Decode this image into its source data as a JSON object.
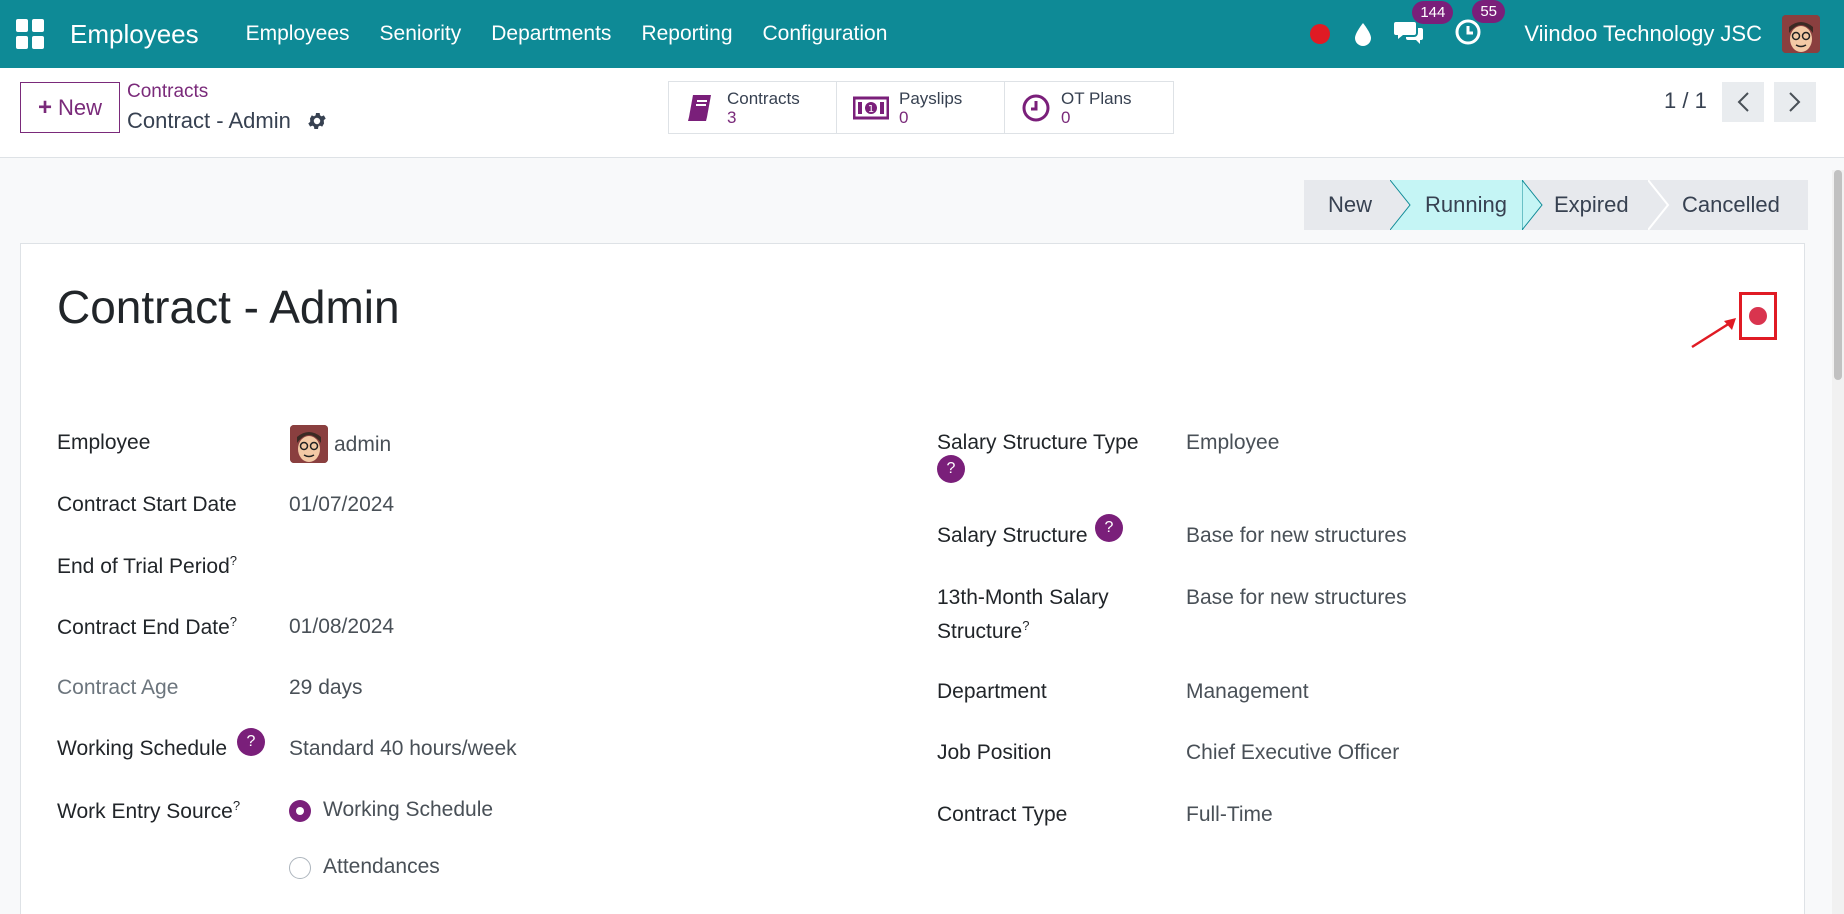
{
  "navbar": {
    "app_title": "Employees",
    "menu": [
      "Employees",
      "Seniority",
      "Departments",
      "Reporting",
      "Configuration"
    ],
    "messages_count": "144",
    "activities_count": "55",
    "company": "Viindoo Technology JSC"
  },
  "control": {
    "new_label": "New",
    "breadcrumb_parent": "Contracts",
    "breadcrumb_current": "Contract - Admin",
    "smart_buttons": [
      {
        "label": "Contracts",
        "count": "3",
        "icon": "book-icon"
      },
      {
        "label": "Payslips",
        "count": "0",
        "icon": "money-icon"
      },
      {
        "label": "OT Plans",
        "count": "0",
        "icon": "clock-icon"
      }
    ],
    "pager": "1 / 1"
  },
  "status": {
    "stages": [
      "New",
      "Running",
      "Expired",
      "Cancelled"
    ],
    "active": "Running"
  },
  "form": {
    "title": "Contract - Admin",
    "left": {
      "employee_label": "Employee",
      "employee_value": "admin",
      "start_label": "Contract Start Date",
      "start_value": "01/07/2024",
      "trial_label": "End of Trial Period",
      "end_label": "Contract End Date",
      "end_value": "01/08/2024",
      "age_label": "Contract Age",
      "age_value": "29 days",
      "schedule_label": "Working Schedule",
      "schedule_value": "Standard 40 hours/week",
      "source_label": "Work Entry Source",
      "source_options": [
        "Working Schedule",
        "Attendances"
      ],
      "source_selected": "Working Schedule"
    },
    "right": {
      "sst_label": "Salary Structure Type",
      "sst_value": "Employee",
      "ss_label": "Salary Structure",
      "ss_value": "Base for new structures",
      "m13_label_1": "13th-Month Salary",
      "m13_label_2": "Structure",
      "m13_value": "Base for new structures",
      "dept_label": "Department",
      "dept_value": "Management",
      "job_label": "Job Position",
      "job_value": "Chief Executive Officer",
      "type_label": "Contract Type",
      "type_value": "Full-Time"
    },
    "help_mark": "?",
    "sup_mark": "?"
  },
  "colors": {
    "navbar": "#0e8a96",
    "accent": "#7a1f7a",
    "active_stage": "#c5f5f5",
    "highlight": "#e01b24"
  }
}
